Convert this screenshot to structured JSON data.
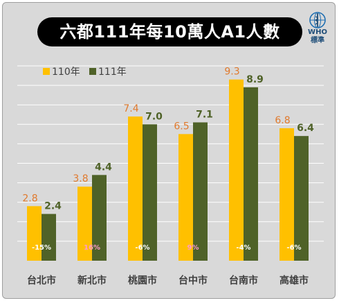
{
  "title": "六都111年每10萬人A1人數",
  "logo": {
    "name": "WHO",
    "sub": "標準"
  },
  "colors": {
    "s110": "#ffc000",
    "s111": "#4f6228",
    "label110": "#e07a2e",
    "label111": "#4f6228",
    "grid": "#ffffff",
    "category": "#404040",
    "pctLight": "#ffffff",
    "pctPink": "#ff99cc"
  },
  "chart_data": {
    "type": "bar",
    "title": "六都111年每10萬人A1人數",
    "categories": [
      "台北市",
      "新北市",
      "桃園市",
      "台中市",
      "台南市",
      "高雄市"
    ],
    "series": [
      {
        "name": "110年",
        "values": [
          2.8,
          3.8,
          7.4,
          6.5,
          9.3,
          6.8
        ]
      },
      {
        "name": "111年",
        "values": [
          2.4,
          4.4,
          7.0,
          7.1,
          8.9,
          6.4
        ]
      }
    ],
    "change_labels": [
      "-15%",
      "16%",
      "-6%",
      "9%",
      "-4%",
      "-6%"
    ],
    "change_label_colors": [
      "light",
      "pink",
      "light",
      "pink",
      "light",
      "light"
    ],
    "ylim": [
      0,
      10
    ],
    "grid": true,
    "legend_position": "top-left"
  }
}
